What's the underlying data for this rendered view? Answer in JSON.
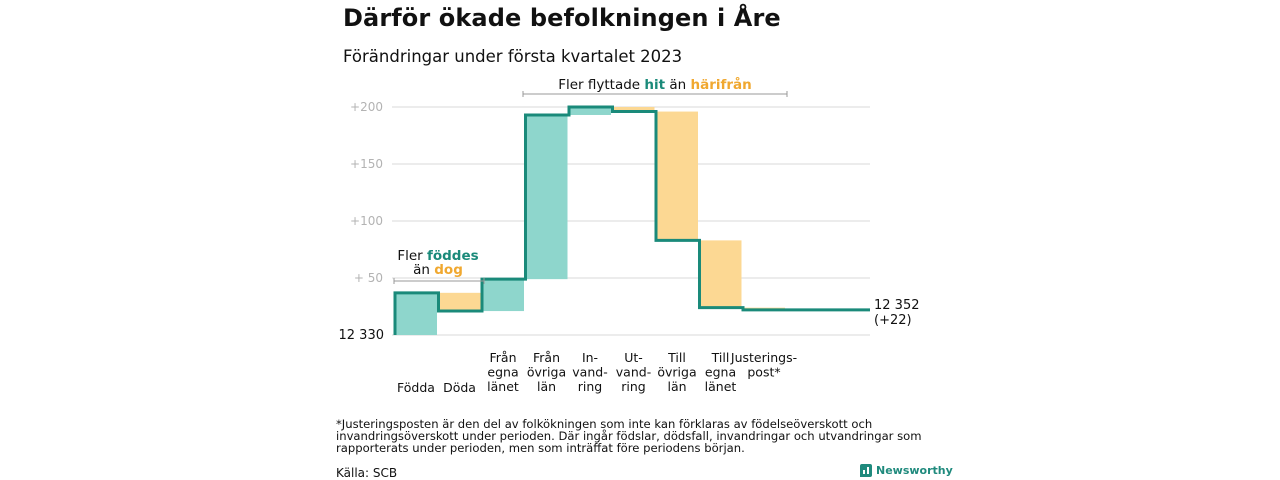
{
  "title": "Därför ökade befolkningen i Åre",
  "subtitle": "Förändringar under första kvartalet 2023",
  "chart_data": {
    "type": "waterfall",
    "start_label": "12 330",
    "end_label_lines": [
      "12 352",
      "(+22)"
    ],
    "base": 12330,
    "y_ticks": [
      {
        "value": 50,
        "label": "+ 50"
      },
      {
        "value": 100,
        "label": "+100"
      },
      {
        "value": 150,
        "label": "+150"
      },
      {
        "value": 200,
        "label": "+200"
      }
    ],
    "ylim": [
      0,
      205
    ],
    "grid": true,
    "colors": {
      "increase": "#8ed6cc",
      "decrease": "#fcd893",
      "line": "#1a8a7a",
      "grid": "#d9d9d9",
      "tick": "#b3b3b3",
      "bracket": "#999999"
    },
    "steps": [
      {
        "label_lines": [
          "Födda"
        ],
        "start": 0,
        "end": 37,
        "kind": "increase"
      },
      {
        "label_lines": [
          "Döda"
        ],
        "start": 37,
        "end": 21,
        "kind": "decrease"
      },
      {
        "label_lines": [
          "Från",
          "egna",
          "länet"
        ],
        "start": 21,
        "end": 49,
        "kind": "increase"
      },
      {
        "label_lines": [
          "Från",
          "övriga",
          "län"
        ],
        "start": 49,
        "end": 193,
        "kind": "increase"
      },
      {
        "label_lines": [
          "In-",
          "vand-",
          "ring"
        ],
        "start": 193,
        "end": 200,
        "kind": "increase"
      },
      {
        "label_lines": [
          "Ut-",
          "vand-",
          "ring"
        ],
        "start": 200,
        "end": 196,
        "kind": "decrease"
      },
      {
        "label_lines": [
          "Till",
          "övriga",
          "län"
        ],
        "start": 196,
        "end": 83,
        "kind": "decrease"
      },
      {
        "label_lines": [
          "Till",
          "egna",
          "länet"
        ],
        "start": 83,
        "end": 24,
        "kind": "decrease"
      },
      {
        "label_lines": [
          "Justerings-",
          "post*"
        ],
        "start": 24,
        "end": 22,
        "kind": "decrease"
      }
    ],
    "annotations": {
      "natural": {
        "line1": "Fler ",
        "word1": "föddes",
        "line2": "än ",
        "word2": "dog"
      },
      "migration": {
        "prefix": "Fler flyttade ",
        "word1": "hit",
        "middle": " än ",
        "word2": "härifrån"
      }
    }
  },
  "footnote": "*Justeringsposten är den del av folkökningen som inte kan förklaras av födelseöverskott och invandringsöverskott under perioden. Där ingår födslar, dödsfall, invandringar och utvandringar som rapporterats under perioden, men som inträffat före periodens början.",
  "source": "Källa: SCB",
  "brand": "Newsworthy"
}
